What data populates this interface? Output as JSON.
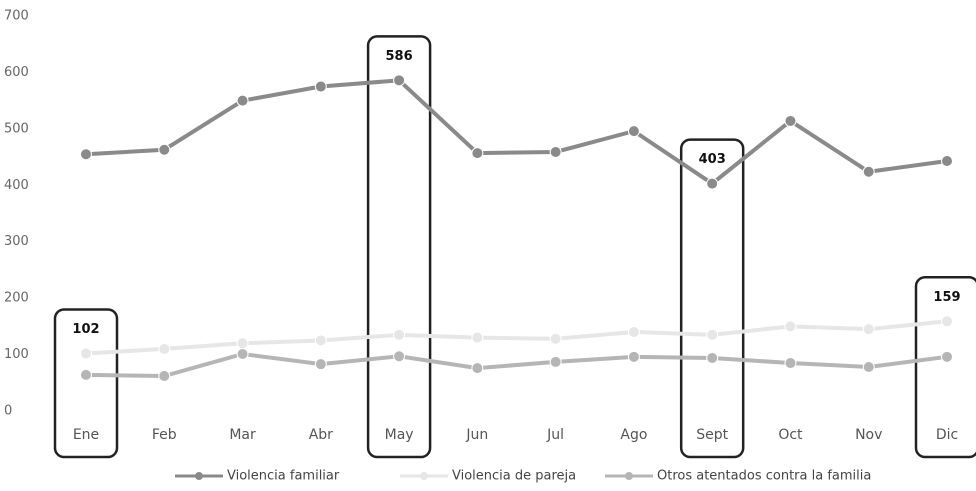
{
  "chart_data": {
    "type": "line",
    "categories": [
      "Ene",
      "Feb",
      "Mar",
      "Abr",
      "May",
      "Jun",
      "Jul",
      "Ago",
      "Sept",
      "Oct",
      "Nov",
      "Dic"
    ],
    "series": [
      {
        "name": "Violencia familiar",
        "color": "#8a8a8a",
        "values": [
          455,
          463,
          550,
          575,
          586,
          457,
          459,
          496,
          403,
          514,
          424,
          443
        ]
      },
      {
        "name": "Violencia de pareja",
        "color": "#e6e6e6",
        "values": [
          102,
          110,
          120,
          125,
          135,
          130,
          128,
          140,
          135,
          150,
          145,
          159
        ]
      },
      {
        "name": "Otros atentados contra la familia",
        "color": "#b5b5b5",
        "values": [
          64,
          62,
          101,
          83,
          97,
          76,
          87,
          96,
          94,
          85,
          78,
          96
        ]
      }
    ],
    "annotations": [
      {
        "category": "Ene",
        "value": 102
      },
      {
        "category": "May",
        "value": 586
      },
      {
        "category": "Sept",
        "value": 403
      },
      {
        "category": "Dic",
        "value": 159
      }
    ],
    "ylim": [
      0,
      700
    ],
    "yticks": [
      0,
      100,
      200,
      300,
      400,
      500,
      600,
      700
    ],
    "grid": false
  }
}
